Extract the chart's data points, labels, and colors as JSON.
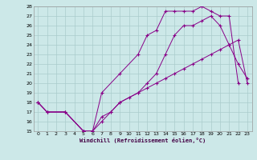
{
  "xlabel": "Windchill (Refroidissement éolien,°C)",
  "xlim": [
    -0.5,
    23.5
  ],
  "ylim": [
    15,
    28
  ],
  "xticks": [
    0,
    1,
    2,
    3,
    4,
    5,
    6,
    7,
    8,
    9,
    10,
    11,
    12,
    13,
    14,
    15,
    16,
    17,
    18,
    19,
    20,
    21,
    22,
    23
  ],
  "yticks": [
    15,
    16,
    17,
    18,
    19,
    20,
    21,
    22,
    23,
    24,
    25,
    26,
    27,
    28
  ],
  "bg_color": "#cce8e8",
  "line_color": "#880088",
  "grid_color": "#aacccc",
  "line1_x": [
    0,
    1,
    3,
    5,
    6,
    7,
    9,
    11,
    12,
    13,
    14,
    15,
    16,
    17,
    18,
    19,
    20,
    21,
    22
  ],
  "line1_y": [
    18,
    17,
    17,
    15,
    15,
    19,
    21,
    23,
    25,
    25.5,
    27.5,
    27.5,
    27.5,
    27.5,
    28,
    27.5,
    27,
    27,
    20
  ],
  "line2_x": [
    0,
    1,
    3,
    5,
    6,
    7,
    8,
    9,
    11,
    12,
    13,
    14,
    15,
    16,
    17,
    18,
    19,
    20,
    21,
    22,
    23
  ],
  "line2_y": [
    18,
    17,
    17,
    15,
    15,
    16.5,
    17,
    18,
    19,
    20,
    21,
    23,
    25,
    26,
    26,
    26.5,
    27,
    26,
    24,
    22,
    20.5
  ],
  "line3_x": [
    0,
    1,
    3,
    5,
    6,
    7,
    8,
    9,
    10,
    11,
    12,
    13,
    14,
    15,
    16,
    17,
    18,
    19,
    20,
    21,
    22,
    23
  ],
  "line3_y": [
    18,
    17,
    17,
    15,
    15,
    16,
    17,
    18,
    18.5,
    19,
    19.5,
    20,
    20.5,
    21,
    21.5,
    22,
    22.5,
    23,
    23.5,
    24,
    24.5,
    20
  ]
}
